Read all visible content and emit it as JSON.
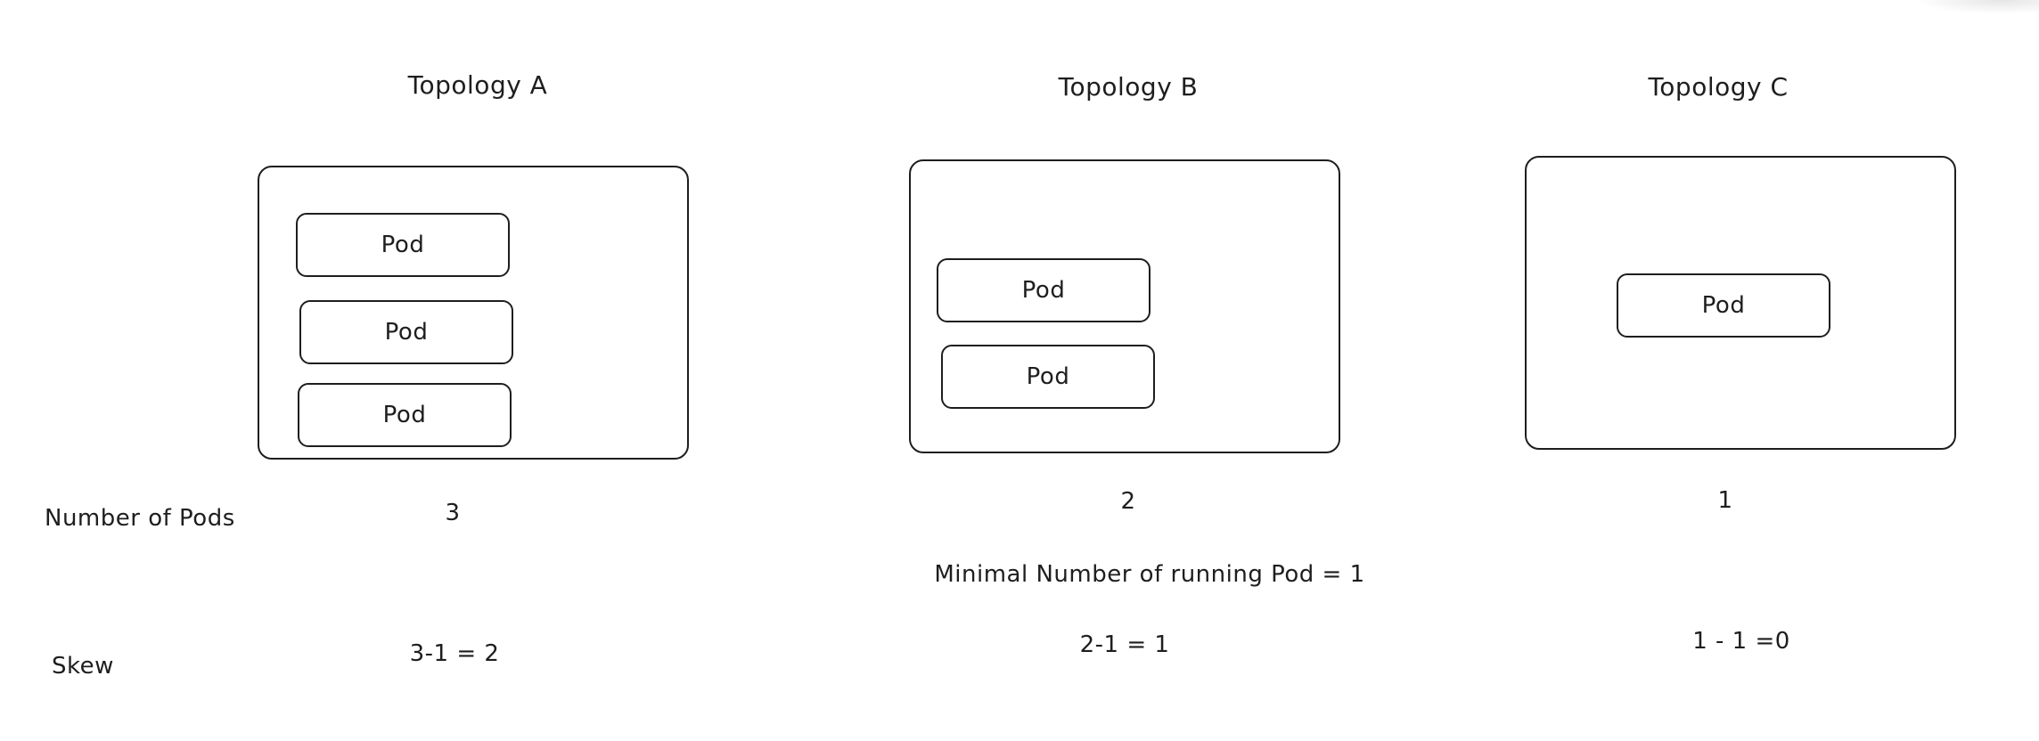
{
  "topologies": [
    {
      "title": "Topology A",
      "pods": [
        "Pod",
        "Pod",
        "Pod"
      ],
      "pod_count": "3",
      "skew": "3-1 = 2"
    },
    {
      "title": "Topology B",
      "pods": [
        "Pod",
        "Pod"
      ],
      "pod_count": "2",
      "skew": "2-1 = 1"
    },
    {
      "title": "Topology C",
      "pods": [
        "Pod"
      ],
      "pod_count": "1",
      "skew": "1 - 1 =0"
    }
  ],
  "row_labels": {
    "pods": "Number of Pods",
    "skew": "Skew"
  },
  "note": "Minimal Number of running Pod  = 1"
}
